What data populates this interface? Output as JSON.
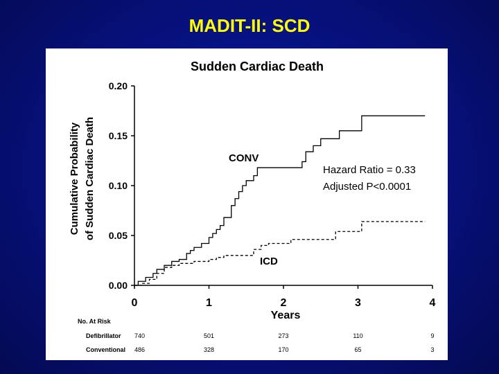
{
  "slide": {
    "title": "MADIT-II: SCD"
  },
  "chart_data": {
    "type": "line",
    "title": "Sudden Cardiac Death",
    "ylabel_line1": "Cumulative Probability",
    "ylabel_line2": "of Sudden Cardiac Death",
    "xlabel": "Years",
    "xlim": [
      0,
      4
    ],
    "ylim": [
      0,
      0.2
    ],
    "xticks": [
      "0",
      "1",
      "2",
      "3",
      "4"
    ],
    "yticks": [
      "0.00",
      "0.05",
      "0.10",
      "0.15",
      "0.20"
    ],
    "series": [
      {
        "name": "CONV",
        "style": "solid",
        "points": [
          [
            0,
            0
          ],
          [
            0.05,
            0.004
          ],
          [
            0.15,
            0.008
          ],
          [
            0.25,
            0.012
          ],
          [
            0.3,
            0.016
          ],
          [
            0.4,
            0.02
          ],
          [
            0.5,
            0.024
          ],
          [
            0.6,
            0.026
          ],
          [
            0.7,
            0.032
          ],
          [
            0.75,
            0.035
          ],
          [
            0.8,
            0.038
          ],
          [
            0.9,
            0.042
          ],
          [
            1.0,
            0.048
          ],
          [
            1.05,
            0.052
          ],
          [
            1.1,
            0.056
          ],
          [
            1.15,
            0.06
          ],
          [
            1.2,
            0.068
          ],
          [
            1.3,
            0.08
          ],
          [
            1.35,
            0.087
          ],
          [
            1.4,
            0.094
          ],
          [
            1.45,
            0.1
          ],
          [
            1.5,
            0.105
          ],
          [
            1.6,
            0.11
          ],
          [
            1.65,
            0.118
          ],
          [
            2.0,
            0.118
          ],
          [
            2.2,
            0.118
          ],
          [
            2.25,
            0.124
          ],
          [
            2.3,
            0.134
          ],
          [
            2.4,
            0.14
          ],
          [
            2.5,
            0.147
          ],
          [
            2.7,
            0.147
          ],
          [
            2.75,
            0.155
          ],
          [
            3.0,
            0.155
          ],
          [
            3.05,
            0.17
          ],
          [
            3.9,
            0.17
          ]
        ]
      },
      {
        "name": "ICD",
        "style": "dashed",
        "points": [
          [
            0,
            0
          ],
          [
            0.1,
            0.002
          ],
          [
            0.2,
            0.006
          ],
          [
            0.3,
            0.012
          ],
          [
            0.4,
            0.018
          ],
          [
            0.5,
            0.02
          ],
          [
            0.6,
            0.022
          ],
          [
            0.7,
            0.022
          ],
          [
            0.8,
            0.024
          ],
          [
            1.0,
            0.026
          ],
          [
            1.1,
            0.028
          ],
          [
            1.2,
            0.03
          ],
          [
            1.5,
            0.03
          ],
          [
            1.6,
            0.036
          ],
          [
            1.7,
            0.04
          ],
          [
            1.8,
            0.042
          ],
          [
            2.1,
            0.046
          ],
          [
            2.4,
            0.046
          ],
          [
            2.7,
            0.054
          ],
          [
            3.0,
            0.054
          ],
          [
            3.05,
            0.064
          ],
          [
            3.9,
            0.064
          ]
        ]
      }
    ],
    "annotations": {
      "conv_label": "CONV",
      "icd_label": "ICD",
      "hazard_ratio": "Hazard Ratio = 0.33",
      "p_value": "Adjusted P<0.0001"
    },
    "risk_table": {
      "header": "No. At Risk",
      "rows": [
        {
          "label": "Defibrillator",
          "values": [
            "740",
            "501",
            "273",
            "110",
            "9"
          ]
        },
        {
          "label": "Conventional",
          "values": [
            "486",
            "328",
            "170",
            "65",
            "3"
          ]
        }
      ]
    }
  },
  "colors": {
    "title": "#ffff00",
    "background": "#06107a",
    "panel": "#ffffff",
    "line": "#000000"
  }
}
